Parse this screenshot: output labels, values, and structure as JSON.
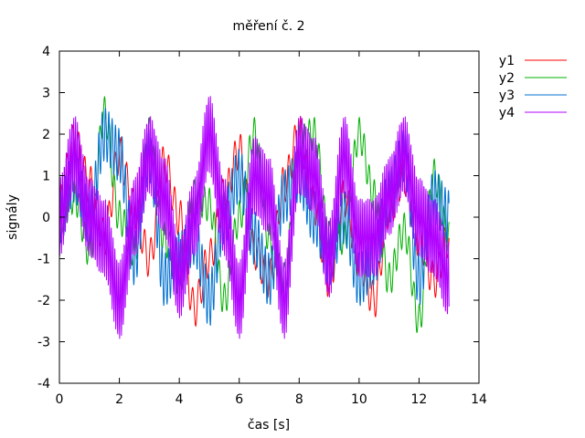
{
  "chart_data": {
    "type": "line",
    "title": "měření č. 2",
    "xlabel": "čas [s]",
    "ylabel": "signály",
    "xlim": [
      0,
      14
    ],
    "ylim": [
      -4,
      4
    ],
    "x_ticks": [
      0,
      2,
      4,
      6,
      8,
      10,
      12,
      14
    ],
    "y_ticks": [
      -4,
      -3,
      -2,
      -1,
      0,
      1,
      2,
      3,
      4
    ],
    "x_tick_labels": [
      "0",
      "2",
      "4",
      "6",
      "8",
      "10",
      "12",
      "14"
    ],
    "y_tick_labels": [
      "-4",
      "-3",
      "-2",
      "-1",
      "0",
      "1",
      "2",
      "3",
      "4"
    ],
    "grid": false,
    "legend": "right, outside plot",
    "x_range": [
      0,
      13
    ],
    "series": [
      {
        "name": "y1",
        "color": "#ff0000",
        "x": [
          0,
          0.5,
          1,
          1.5,
          2,
          2.5,
          3,
          3.5,
          4,
          4.5,
          5,
          5.5,
          6,
          6.5,
          7,
          7.5,
          8,
          8.5,
          9,
          9.5,
          10,
          10.5,
          11,
          11.5,
          12,
          12.5,
          13
        ],
        "y": [
          0.3,
          1.8,
          0.8,
          -0.5,
          1.5,
          0.2,
          -1.0,
          1.3,
          0.0,
          -2.2,
          -1.0,
          0.5,
          1.6,
          -0.8,
          -1.5,
          0.8,
          2.0,
          0.3,
          -1.5,
          0.5,
          -1.0,
          -2.0,
          0.2,
          1.0,
          -0.5,
          -1.5,
          -0.5
        ]
      },
      {
        "name": "y2",
        "color": "#00b000",
        "x": [
          0,
          0.5,
          1,
          1.5,
          2,
          2.5,
          3,
          3.5,
          4,
          4.5,
          5,
          5.5,
          6,
          6.5,
          7,
          7.5,
          8,
          8.5,
          9,
          9.5,
          10,
          10.5,
          11,
          11.5,
          12,
          12.5,
          13
        ],
        "y": [
          0.0,
          0.5,
          -0.8,
          2.5,
          0.0,
          -0.8,
          2.0,
          -0.5,
          -1.5,
          0.5,
          0.3,
          -2.0,
          0.0,
          2.0,
          -0.5,
          -1.5,
          1.8,
          2.0,
          -0.5,
          -0.5,
          2.0,
          0.5,
          -1.5,
          -0.3,
          -2.5,
          1.0,
          -0.5
        ]
      },
      {
        "name": "y3",
        "color": "#0070d0",
        "x": [
          0,
          0.5,
          1,
          1.5,
          2,
          2.5,
          3,
          3.5,
          4,
          4.5,
          5,
          5.5,
          6,
          6.5,
          7,
          7.5,
          8,
          8.5,
          9,
          9.5,
          10,
          10.5,
          11,
          11.5,
          12,
          12.5,
          13
        ],
        "y": [
          0.0,
          1.0,
          0.0,
          2.0,
          1.5,
          -1.0,
          1.5,
          -1.5,
          -1.0,
          -0.5,
          -2.0,
          0.0,
          1.0,
          -0.5,
          -1.5,
          0.5,
          1.0,
          0.0,
          -1.0,
          0.0,
          -1.5,
          -1.0,
          0.5,
          1.5,
          -1.5,
          0.5,
          0.0
        ]
      },
      {
        "name": "y4",
        "color": "#b000ff",
        "x": [
          0,
          0.5,
          1,
          1.5,
          2,
          2.5,
          3,
          3.5,
          4,
          4.5,
          5,
          5.5,
          6,
          6.5,
          7,
          7.5,
          8,
          8.5,
          9,
          9.5,
          10,
          10.5,
          11,
          11.5,
          12,
          12.5,
          13
        ],
        "y": [
          0.0,
          1.5,
          0.0,
          -0.5,
          -2.0,
          0.0,
          1.5,
          0.5,
          -1.5,
          0.0,
          2.0,
          0.0,
          -2.0,
          1.0,
          0.5,
          -2.0,
          1.5,
          1.0,
          -1.0,
          1.5,
          -0.5,
          -0.5,
          0.5,
          1.5,
          0.0,
          -0.5,
          -1.5
        ]
      }
    ]
  }
}
